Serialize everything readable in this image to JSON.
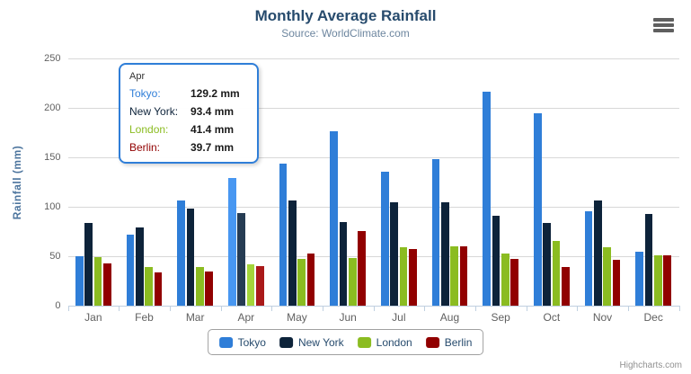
{
  "chart_data": {
    "type": "bar",
    "title": "Monthly Average Rainfall",
    "subtitle": "Source: WorldClimate.com",
    "ylabel": "Rainfall (mm)",
    "xlabel": "",
    "ylim": [
      0,
      250
    ],
    "yticks": [
      0,
      50,
      100,
      150,
      200,
      250
    ],
    "grid": true,
    "legend_position": "bottom-center",
    "categories": [
      "Jan",
      "Feb",
      "Mar",
      "Apr",
      "May",
      "Jun",
      "Jul",
      "Aug",
      "Sep",
      "Oct",
      "Nov",
      "Dec"
    ],
    "series": [
      {
        "name": "Tokyo",
        "color": "#2f7ed8",
        "hover_color": "#4897f1",
        "values": [
          49.9,
          71.5,
          106.4,
          129.2,
          144.0,
          176.0,
          135.6,
          148.5,
          216.4,
          194.1,
          95.6,
          54.4
        ]
      },
      {
        "name": "New York",
        "color": "#0d233a",
        "hover_color": "#263c53",
        "values": [
          83.6,
          78.8,
          98.5,
          93.4,
          106.0,
          84.5,
          105.0,
          104.3,
          91.2,
          83.5,
          106.6,
          92.3
        ]
      },
      {
        "name": "London",
        "color": "#8bbc21",
        "hover_color": "#a4d53a",
        "values": [
          48.9,
          38.8,
          39.3,
          41.4,
          47.0,
          48.3,
          59.0,
          59.6,
          52.4,
          65.2,
          59.3,
          51.2
        ]
      },
      {
        "name": "Berlin",
        "color": "#910000",
        "hover_color": "#aa1919",
        "values": [
          42.4,
          33.2,
          34.5,
          39.7,
          52.6,
          75.5,
          57.4,
          60.4,
          47.6,
          39.1,
          46.8,
          51.1
        ]
      }
    ]
  },
  "tooltip": {
    "visible": true,
    "month_index": 3,
    "header": "Apr",
    "border_color": "#2f7ed8",
    "rows": [
      {
        "label": "Tokyo:",
        "value": "129.2 mm",
        "color": "#2f7ed8"
      },
      {
        "label": "New York:",
        "value": "93.4 mm",
        "color": "#0d233a"
      },
      {
        "label": "London:",
        "value": "41.4 mm",
        "color": "#8bbc21"
      },
      {
        "label": "Berlin:",
        "value": "39.7 mm",
        "color": "#910000"
      }
    ]
  },
  "credits": {
    "text": "Highcharts.com"
  },
  "menu": {
    "icon": "hamburger-icon"
  }
}
